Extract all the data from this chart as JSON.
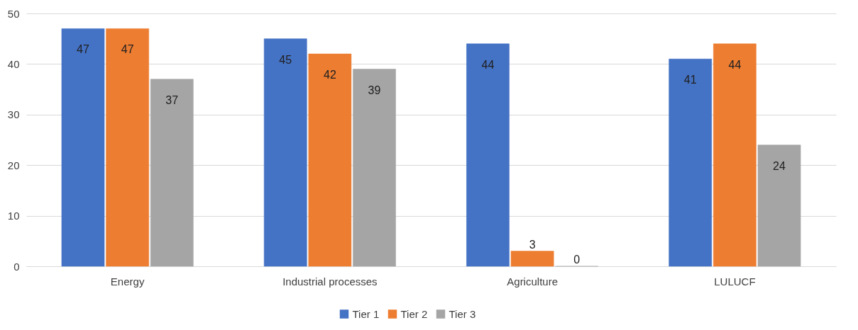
{
  "chart_data": {
    "type": "bar",
    "categories": [
      "Energy",
      "Industrial processes",
      "Agriculture",
      "LULUCF"
    ],
    "series": [
      {
        "name": "Tier 1",
        "color": "#4472c4",
        "values": [
          47,
          45,
          44,
          41
        ]
      },
      {
        "name": "Tier 2",
        "color": "#ed7d31",
        "values": [
          47,
          42,
          3,
          44
        ]
      },
      {
        "name": "Tier 3",
        "color": "#a5a5a5",
        "values": [
          37,
          39,
          0,
          24
        ]
      }
    ],
    "ylim": [
      0,
      50
    ],
    "yticks": [
      0,
      10,
      20,
      30,
      40,
      50
    ],
    "grid": "y",
    "legend": "bottom",
    "data_labels": true
  }
}
